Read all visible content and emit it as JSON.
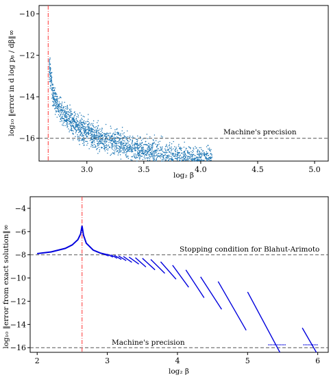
{
  "chart_data": [
    {
      "type": "scatter",
      "xlabel": "log₂ β",
      "ylabel": "log₁₀ ‖error in d log pᵦ / dβ‖∞",
      "xlim": [
        2.58,
        5.12
      ],
      "ylim": [
        -17.1,
        -9.6
      ],
      "xticks": [
        3.0,
        3.5,
        4.0,
        4.5,
        5.0
      ],
      "xtick_labels": [
        "3.0",
        "3.5",
        "4.0",
        "4.5",
        "5.0"
      ],
      "yticks": [
        -10,
        -12,
        -14,
        -16
      ],
      "ytick_labels": [
        "−10",
        "−12",
        "−14",
        "−16"
      ],
      "grid": false,
      "point_color": "#1f77b4",
      "vline": {
        "x": 2.66,
        "color": "#ff3333",
        "style": "dash-dot"
      },
      "hlines": [
        {
          "y": -16.0,
          "label": "Machine's precision",
          "color": "#555555",
          "style": "dashed"
        }
      ],
      "trend": {
        "description": "noisy decaying cloud of points",
        "x": [
          2.67,
          2.7,
          2.75,
          2.8,
          2.9,
          3.0,
          3.1,
          3.2,
          3.3,
          3.4,
          3.5,
          3.6,
          3.7,
          3.8,
          3.9,
          4.0,
          4.1
        ],
        "y": [
          -12.5,
          -13.9,
          -14.5,
          -14.9,
          -15.4,
          -15.7,
          -15.95,
          -16.15,
          -16.3,
          -16.45,
          -16.6,
          -16.7,
          -16.8,
          -16.9,
          -16.95,
          -17.0,
          -17.05
        ],
        "spread": 0.3
      }
    },
    {
      "type": "line",
      "xlabel": "log₂ β",
      "ylabel": "log₁₀ ‖error from exact solution‖∞",
      "xlim": [
        1.9,
        6.15
      ],
      "ylim": [
        -16.4,
        -3.0
      ],
      "xticks": [
        2,
        3,
        4,
        5,
        6
      ],
      "xtick_labels": [
        "2",
        "3",
        "4",
        "5",
        "6"
      ],
      "yticks": [
        -4,
        -6,
        -8,
        -10,
        -12,
        -14,
        -16
      ],
      "ytick_labels": [
        "−4",
        "−6",
        "−8",
        "−10",
        "−12",
        "−14",
        "−16"
      ],
      "grid": false,
      "line_color": "#0000dd",
      "vline": {
        "x": 2.64,
        "color": "#ff3333",
        "style": "dash-dot"
      },
      "hlines": [
        {
          "y": -8.0,
          "label": "Stopping condition for Blahut-Arimoto",
          "color": "#555555",
          "style": "dashed"
        },
        {
          "y": -16.0,
          "label": "Machine's precision",
          "color": "#555555",
          "style": "dashed"
        }
      ],
      "peak": {
        "x": [
          2.0,
          2.2,
          2.4,
          2.5,
          2.58,
          2.62,
          2.64,
          2.66,
          2.7,
          2.8,
          2.9,
          3.0
        ],
        "y": [
          -7.9,
          -7.75,
          -7.45,
          -7.15,
          -6.7,
          -6.2,
          -5.5,
          -6.3,
          -7.0,
          -7.6,
          -7.85,
          -8.0
        ]
      },
      "segments": [
        {
          "x": [
            2.95,
            3.02
          ],
          "y": [
            -7.95,
            -8.1
          ]
        },
        {
          "x": [
            3.0,
            3.08
          ],
          "y": [
            -7.95,
            -8.2
          ]
        },
        {
          "x": [
            3.05,
            3.14
          ],
          "y": [
            -8.0,
            -8.3
          ]
        },
        {
          "x": [
            3.1,
            3.2
          ],
          "y": [
            -8.05,
            -8.4
          ]
        },
        {
          "x": [
            3.16,
            3.27
          ],
          "y": [
            -8.1,
            -8.5
          ]
        },
        {
          "x": [
            3.23,
            3.35
          ],
          "y": [
            -8.15,
            -8.65
          ]
        },
        {
          "x": [
            3.31,
            3.45
          ],
          "y": [
            -8.2,
            -8.8
          ]
        },
        {
          "x": [
            3.4,
            3.55
          ],
          "y": [
            -8.25,
            -9.05
          ]
        },
        {
          "x": [
            3.5,
            3.68
          ],
          "y": [
            -8.3,
            -9.3
          ]
        },
        {
          "x": [
            3.62,
            3.82
          ],
          "y": [
            -8.4,
            -9.6
          ]
        },
        {
          "x": [
            3.76,
            3.98
          ],
          "y": [
            -8.6,
            -10.1
          ]
        },
        {
          "x": [
            3.93,
            4.16
          ],
          "y": [
            -8.9,
            -10.8
          ]
        },
        {
          "x": [
            4.12,
            4.38
          ],
          "y": [
            -9.3,
            -11.7
          ]
        },
        {
          "x": [
            4.33,
            4.63
          ],
          "y": [
            -9.9,
            -12.7
          ]
        },
        {
          "x": [
            4.58,
            4.98
          ],
          "y": [
            -10.3,
            -14.5
          ]
        },
        {
          "x": [
            5.0,
            5.46
          ],
          "y": [
            -11.2,
            -16.4
          ]
        },
        {
          "x": [
            5.78,
            5.98
          ],
          "y": [
            -14.3,
            -16.4
          ]
        }
      ],
      "floor_dots": [
        {
          "x": [
            5.3,
            5.55
          ],
          "y": -15.75
        },
        {
          "x": [
            5.8,
            6.0
          ],
          "y": -15.75
        }
      ]
    }
  ]
}
